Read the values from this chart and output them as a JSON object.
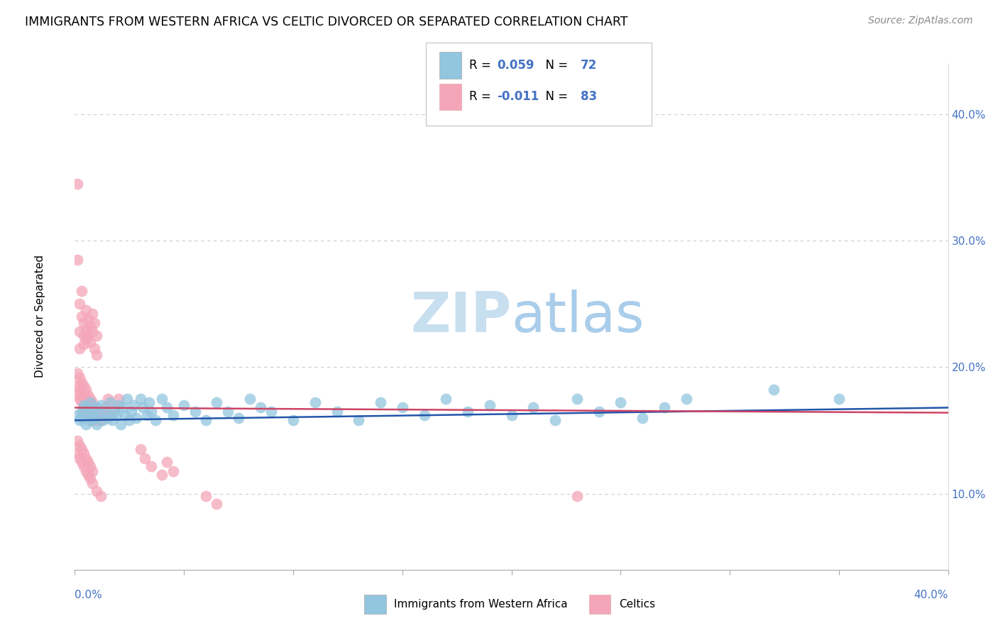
{
  "title": "IMMIGRANTS FROM WESTERN AFRICA VS CELTIC DIVORCED OR SEPARATED CORRELATION CHART",
  "source": "Source: ZipAtlas.com",
  "ylabel": "Divorced or Separated",
  "right_yticks": [
    "10.0%",
    "20.0%",
    "30.0%",
    "40.0%"
  ],
  "right_ytick_vals": [
    0.1,
    0.2,
    0.3,
    0.4
  ],
  "xlim": [
    0.0,
    0.4
  ],
  "ylim": [
    0.04,
    0.44
  ],
  "color_blue": "#92c5de",
  "color_pink": "#f4a6b8",
  "trend_blue": "#2255aa",
  "trend_pink": "#cc4466",
  "watermark_zip": "ZIP",
  "watermark_atlas": "atlas",
  "blue_slope": 0.025,
  "blue_intercept": 0.158,
  "pink_slope": -0.01,
  "pink_intercept": 0.168,
  "blue_scatter": [
    [
      0.001,
      0.162
    ],
    [
      0.002,
      0.158
    ],
    [
      0.003,
      0.165
    ],
    [
      0.003,
      0.16
    ],
    [
      0.004,
      0.17
    ],
    [
      0.005,
      0.155
    ],
    [
      0.005,
      0.168
    ],
    [
      0.006,
      0.162
    ],
    [
      0.007,
      0.158
    ],
    [
      0.007,
      0.172
    ],
    [
      0.008,
      0.165
    ],
    [
      0.009,
      0.16
    ],
    [
      0.01,
      0.168
    ],
    [
      0.01,
      0.155
    ],
    [
      0.011,
      0.162
    ],
    [
      0.012,
      0.17
    ],
    [
      0.013,
      0.158
    ],
    [
      0.014,
      0.165
    ],
    [
      0.015,
      0.16
    ],
    [
      0.016,
      0.172
    ],
    [
      0.017,
      0.158
    ],
    [
      0.018,
      0.165
    ],
    [
      0.019,
      0.162
    ],
    [
      0.02,
      0.17
    ],
    [
      0.021,
      0.155
    ],
    [
      0.022,
      0.168
    ],
    [
      0.023,
      0.162
    ],
    [
      0.024,
      0.175
    ],
    [
      0.025,
      0.158
    ],
    [
      0.026,
      0.165
    ],
    [
      0.027,
      0.17
    ],
    [
      0.028,
      0.16
    ],
    [
      0.03,
      0.175
    ],
    [
      0.031,
      0.168
    ],
    [
      0.033,
      0.162
    ],
    [
      0.034,
      0.172
    ],
    [
      0.035,
      0.165
    ],
    [
      0.037,
      0.158
    ],
    [
      0.04,
      0.175
    ],
    [
      0.042,
      0.168
    ],
    [
      0.045,
      0.162
    ],
    [
      0.05,
      0.17
    ],
    [
      0.055,
      0.165
    ],
    [
      0.06,
      0.158
    ],
    [
      0.065,
      0.172
    ],
    [
      0.07,
      0.165
    ],
    [
      0.075,
      0.16
    ],
    [
      0.08,
      0.175
    ],
    [
      0.085,
      0.168
    ],
    [
      0.09,
      0.165
    ],
    [
      0.1,
      0.158
    ],
    [
      0.11,
      0.172
    ],
    [
      0.12,
      0.165
    ],
    [
      0.13,
      0.158
    ],
    [
      0.14,
      0.172
    ],
    [
      0.15,
      0.168
    ],
    [
      0.16,
      0.162
    ],
    [
      0.17,
      0.175
    ],
    [
      0.18,
      0.165
    ],
    [
      0.19,
      0.17
    ],
    [
      0.2,
      0.162
    ],
    [
      0.21,
      0.168
    ],
    [
      0.22,
      0.158
    ],
    [
      0.23,
      0.175
    ],
    [
      0.24,
      0.165
    ],
    [
      0.25,
      0.172
    ],
    [
      0.26,
      0.16
    ],
    [
      0.27,
      0.168
    ],
    [
      0.28,
      0.175
    ],
    [
      0.32,
      0.182
    ],
    [
      0.35,
      0.175
    ]
  ],
  "pink_scatter": [
    [
      0.001,
      0.345
    ],
    [
      0.001,
      0.285
    ],
    [
      0.002,
      0.25
    ],
    [
      0.002,
      0.228
    ],
    [
      0.002,
      0.215
    ],
    [
      0.003,
      0.26
    ],
    [
      0.003,
      0.24
    ],
    [
      0.004,
      0.235
    ],
    [
      0.004,
      0.225
    ],
    [
      0.004,
      0.218
    ],
    [
      0.005,
      0.245
    ],
    [
      0.005,
      0.23
    ],
    [
      0.005,
      0.222
    ],
    [
      0.006,
      0.238
    ],
    [
      0.006,
      0.225
    ],
    [
      0.007,
      0.232
    ],
    [
      0.007,
      0.22
    ],
    [
      0.008,
      0.242
    ],
    [
      0.008,
      0.228
    ],
    [
      0.009,
      0.235
    ],
    [
      0.009,
      0.215
    ],
    [
      0.01,
      0.225
    ],
    [
      0.01,
      0.21
    ],
    [
      0.001,
      0.195
    ],
    [
      0.001,
      0.185
    ],
    [
      0.001,
      0.178
    ],
    [
      0.002,
      0.192
    ],
    [
      0.002,
      0.182
    ],
    [
      0.002,
      0.175
    ],
    [
      0.003,
      0.188
    ],
    [
      0.003,
      0.178
    ],
    [
      0.003,
      0.172
    ],
    [
      0.004,
      0.185
    ],
    [
      0.004,
      0.175
    ],
    [
      0.004,
      0.168
    ],
    [
      0.005,
      0.182
    ],
    [
      0.005,
      0.175
    ],
    [
      0.005,
      0.165
    ],
    [
      0.006,
      0.178
    ],
    [
      0.006,
      0.172
    ],
    [
      0.006,
      0.162
    ],
    [
      0.007,
      0.175
    ],
    [
      0.007,
      0.168
    ],
    [
      0.007,
      0.158
    ],
    [
      0.008,
      0.172
    ],
    [
      0.008,
      0.165
    ],
    [
      0.008,
      0.158
    ],
    [
      0.009,
      0.168
    ],
    [
      0.009,
      0.162
    ],
    [
      0.01,
      0.165
    ],
    [
      0.01,
      0.158
    ],
    [
      0.011,
      0.162
    ],
    [
      0.012,
      0.158
    ],
    [
      0.013,
      0.165
    ],
    [
      0.014,
      0.168
    ],
    [
      0.015,
      0.175
    ],
    [
      0.016,
      0.162
    ],
    [
      0.018,
      0.168
    ],
    [
      0.02,
      0.175
    ],
    [
      0.001,
      0.142
    ],
    [
      0.001,
      0.132
    ],
    [
      0.002,
      0.138
    ],
    [
      0.002,
      0.128
    ],
    [
      0.003,
      0.135
    ],
    [
      0.003,
      0.125
    ],
    [
      0.004,
      0.132
    ],
    [
      0.004,
      0.122
    ],
    [
      0.005,
      0.128
    ],
    [
      0.005,
      0.118
    ],
    [
      0.006,
      0.125
    ],
    [
      0.006,
      0.115
    ],
    [
      0.007,
      0.122
    ],
    [
      0.007,
      0.112
    ],
    [
      0.008,
      0.118
    ],
    [
      0.008,
      0.108
    ],
    [
      0.01,
      0.102
    ],
    [
      0.012,
      0.098
    ],
    [
      0.03,
      0.135
    ],
    [
      0.032,
      0.128
    ],
    [
      0.035,
      0.122
    ],
    [
      0.04,
      0.115
    ],
    [
      0.042,
      0.125
    ],
    [
      0.045,
      0.118
    ],
    [
      0.06,
      0.098
    ],
    [
      0.065,
      0.092
    ],
    [
      0.23,
      0.098
    ]
  ]
}
